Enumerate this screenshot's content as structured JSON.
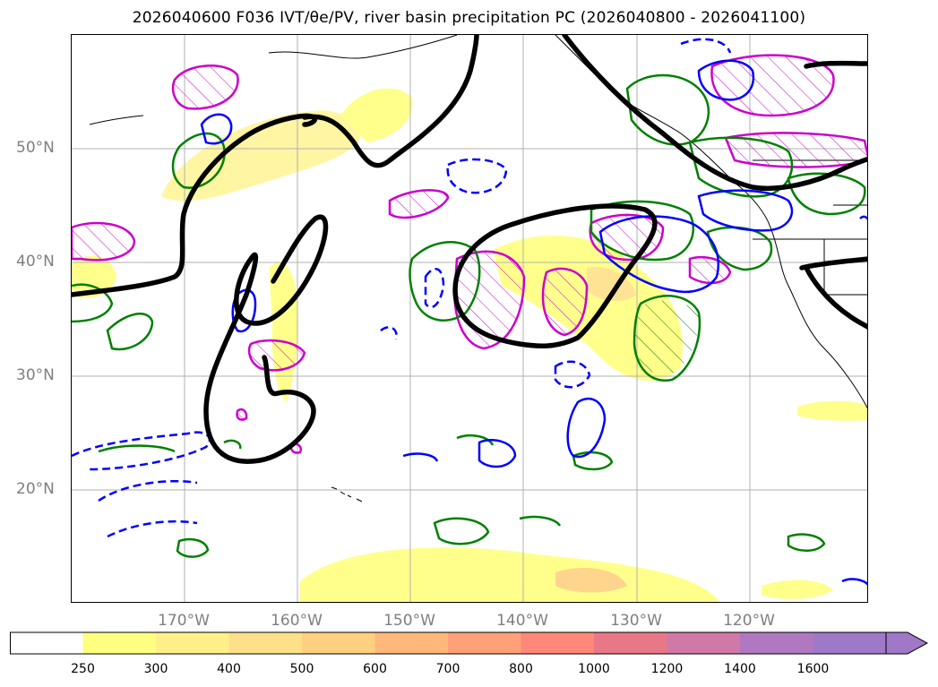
{
  "title": "2026040600 F036 IVT/θe/PV, river basin precipitation PC (2026040800 - 2026041100)",
  "map": {
    "lat_labels": [
      "50°N",
      "40°N",
      "30°N",
      "20°N"
    ],
    "lon_labels": [
      "170°W",
      "160°W",
      "150°W",
      "140°W",
      "130°W",
      "120°W"
    ],
    "gridlines": true,
    "layers": [
      {
        "name": "IVT",
        "kind": "filled",
        "color": "#ffff80"
      },
      {
        "name": "theta-e",
        "kind": "contour",
        "color": "#008000"
      },
      {
        "name": "PV",
        "kind": "contour",
        "color": "#0000ff"
      },
      {
        "name": "river basin precipitation PC",
        "kind": "hatched",
        "color": "#cc00cc"
      },
      {
        "name": "dynamic tropopause",
        "kind": "thick-line",
        "color": "#000000"
      }
    ]
  },
  "colorbar": {
    "ticks": [
      "250",
      "300",
      "400",
      "500",
      "600",
      "700",
      "800",
      "1000",
      "1200",
      "1400",
      "1600"
    ],
    "colors": [
      "#ffffff",
      "#ffff80",
      "#fff08a",
      "#ffe08a",
      "#ffd080",
      "#ffb87a",
      "#ffa078",
      "#ff8878",
      "#e87888",
      "#d078a8",
      "#b078c0",
      "#a078c8"
    ],
    "extend": "max"
  }
}
